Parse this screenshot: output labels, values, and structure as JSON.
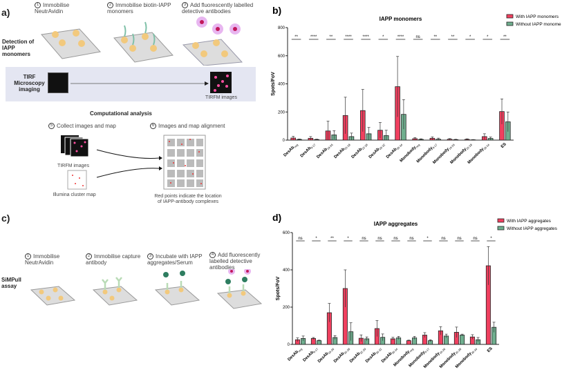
{
  "panel_a": {
    "label": "a)",
    "steps": [
      "Immobilise NeutrAvidin",
      "Immobilise biotin-IAPP monomers",
      "Add fluorescently labelled detective antibodies"
    ],
    "step_numbers": [
      "1",
      "2",
      "3"
    ],
    "row_label": "Detection of IAPP monomers",
    "tirf_label": "TIRF Microscopy imaging",
    "tirfm_images": "TIRFM images",
    "comp_title": "Computational analysis",
    "step5_num": "5",
    "step5": "Collect images and map",
    "step6_num": "6",
    "step6": "Images and map alignment",
    "tirfm_images2": "TIRFM images",
    "cluster_map": "Illumina cluster map",
    "red_points": "Red points indicate the location of IAPP-antibody complexes"
  },
  "panel_c": {
    "label": "c)",
    "row_label": "SiMPull assay",
    "step_numbers": [
      "1",
      "2",
      "3",
      "4"
    ],
    "steps": [
      "Immobilise NeutrAvidin",
      "Immobilise capture antibody",
      "Incubate with IAPP aggregates/Serum",
      "Add fluorescently labelled detective antibodies"
    ]
  },
  "colors": {
    "with": "#f0405f",
    "without": "#6fae8e"
  },
  "chart_data": [
    {
      "panel": "b)",
      "type": "bar",
      "title": "IAPP monomers",
      "xlabel": "",
      "ylabel": "Spots/FoV",
      "ylim": [
        0,
        800
      ],
      "yticks": [
        0,
        200,
        400,
        600,
        800
      ],
      "categories": [
        [
          "DesAb",
          "neg"
        ],
        [
          "DesAb",
          "9-17"
        ],
        [
          "DesAb",
          "19-26"
        ],
        [
          "DesAb",
          "20-28"
        ],
        [
          "DesAb",
          "22-29"
        ],
        [
          "DesAb",
          "26-32"
        ],
        [
          "DesAb",
          "26-34"
        ],
        [
          "Monobody",
          "neg"
        ],
        [
          "Monobody",
          "9-17"
        ],
        [
          "Monobody",
          "19-26"
        ],
        [
          "Monobody",
          "20-28"
        ],
        [
          "Monobody",
          "26-34"
        ],
        [
          "ES",
          ""
        ]
      ],
      "series": [
        {
          "name": "With IAPP monomers",
          "values": [
            15,
            13,
            65,
            175,
            210,
            70,
            380,
            10,
            13,
            6,
            5,
            25,
            203
          ],
          "errors": [
            12,
            12,
            70,
            130,
            150,
            55,
            215,
            8,
            10,
            5,
            4,
            20,
            90
          ]
        },
        {
          "name": "Without IAPP monomers",
          "values": [
            5,
            4,
            37,
            25,
            45,
            32,
            183,
            5,
            6,
            3,
            2,
            12,
            130
          ],
          "errors": [
            3,
            3,
            30,
            25,
            45,
            38,
            105,
            4,
            8,
            3,
            2,
            10,
            70
          ]
        }
      ],
      "significance": [
        "**",
        "****",
        "**",
        "****",
        "****",
        "*",
        "****",
        "ns",
        "**",
        "**",
        "*",
        "*",
        "**"
      ],
      "legend": "top-right",
      "legend_text": [
        "With IAPP monomers",
        "Without IAPP monome"
      ]
    },
    {
      "panel": "d)",
      "type": "bar",
      "title": "IAPP aggregates",
      "xlabel": "",
      "ylabel": "Spots/FoV",
      "ylim": [
        0,
        600
      ],
      "yticks": [
        0,
        200,
        400,
        600
      ],
      "categories": [
        [
          "DesAb",
          "neg"
        ],
        [
          "DesAb",
          "9-17"
        ],
        [
          "DesAb",
          "19-26"
        ],
        [
          "DesAb",
          "20-28"
        ],
        [
          "DesAb",
          "22-29"
        ],
        [
          "DesAb",
          "26-32"
        ],
        [
          "DesAb",
          "26-34"
        ],
        [
          "Monobody",
          "neg"
        ],
        [
          "Monobody",
          "9-17"
        ],
        [
          "Monobody",
          "19-26"
        ],
        [
          "Monobody",
          "20-28"
        ],
        [
          "Monobody",
          "26-34"
        ],
        [
          "ES",
          ""
        ]
      ],
      "series": [
        {
          "name": "With IAPP aggregates",
          "values": [
            25,
            32,
            170,
            300,
            33,
            85,
            30,
            20,
            50,
            73,
            65,
            40,
            422
          ],
          "errors": [
            10,
            5,
            50,
            100,
            18,
            43,
            8,
            3,
            13,
            22,
            28,
            12,
            103
          ]
        },
        {
          "name": "Without IAPP aggregates",
          "values": [
            32,
            20,
            37,
            68,
            30,
            38,
            35,
            35,
            20,
            45,
            50,
            25,
            92
          ],
          "errors": [
            13,
            3,
            10,
            48,
            10,
            18,
            8,
            8,
            5,
            10,
            5,
            12,
            27
          ]
        }
      ],
      "significance": [
        "ns",
        "*",
        "**",
        "*",
        "ns",
        "ns",
        "ns",
        "ns",
        "*",
        "ns",
        "ns",
        "ns",
        "*"
      ],
      "legend": "top-right",
      "legend_text": [
        "With IAPP aggregates",
        "Without IAPP aggregates"
      ]
    }
  ]
}
